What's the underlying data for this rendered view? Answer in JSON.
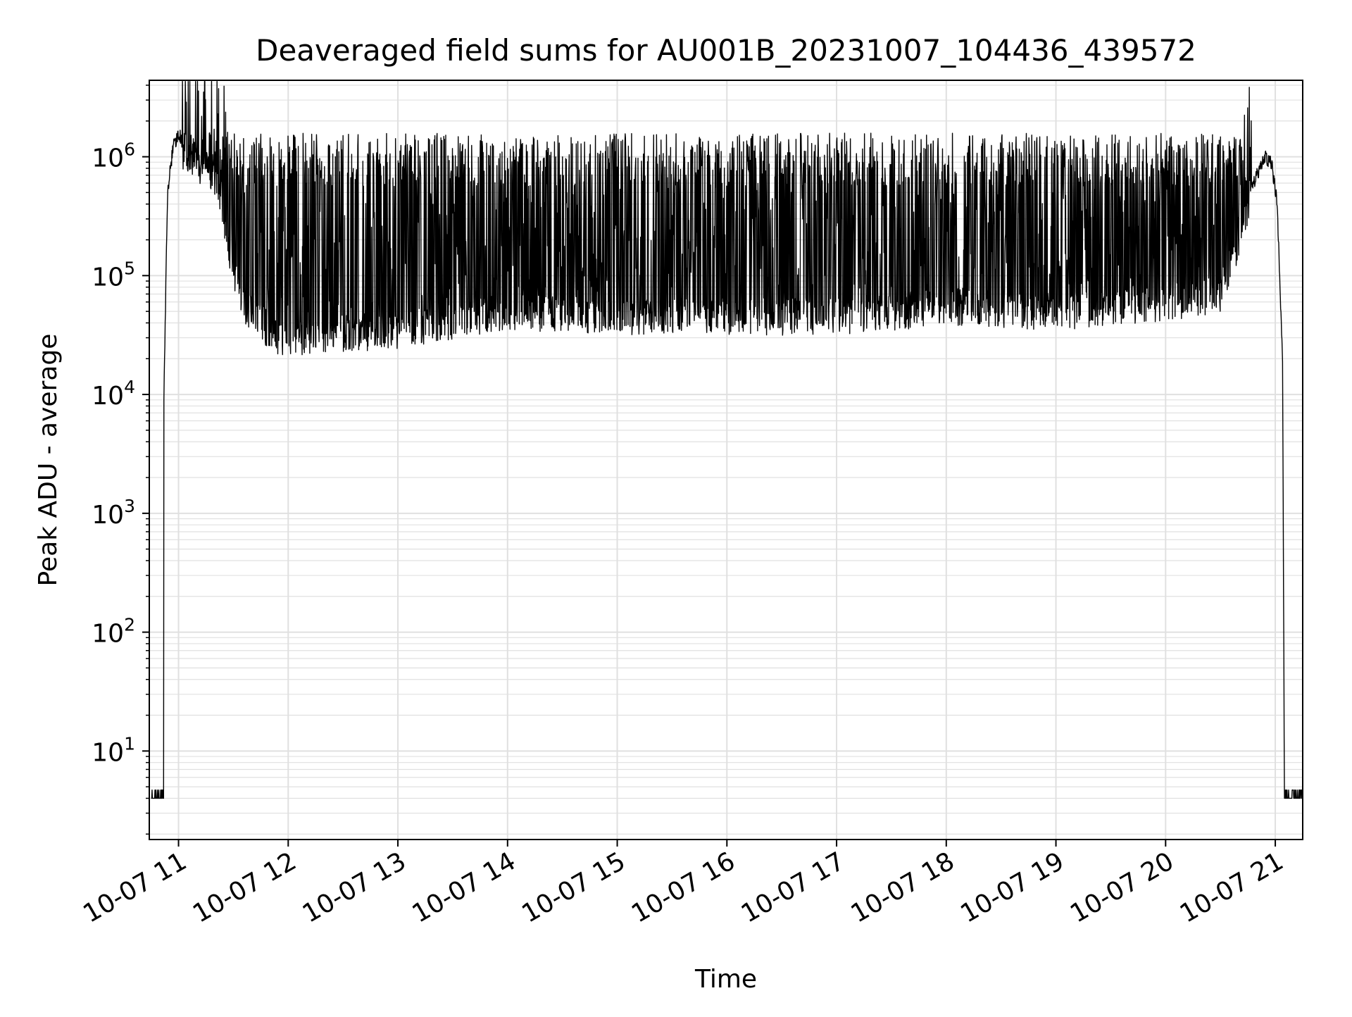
{
  "chart_data": {
    "type": "line",
    "title": "Deaveraged field sums for AU001B_20231007_104436_439572",
    "xlabel": "Time",
    "ylabel": "Peak ADU - average",
    "x_axis_type": "datetime",
    "x_range": [
      "2023-10-07 10:44",
      "2023-10-07 21:15"
    ],
    "y_scale": "log",
    "ylim": [
      1.8,
      4400000
    ],
    "x_ticks": [
      {
        "t": "2023-10-07 11:00",
        "label": "10-07 11"
      },
      {
        "t": "2023-10-07 12:00",
        "label": "10-07 12"
      },
      {
        "t": "2023-10-07 13:00",
        "label": "10-07 13"
      },
      {
        "t": "2023-10-07 14:00",
        "label": "10-07 14"
      },
      {
        "t": "2023-10-07 15:00",
        "label": "10-07 15"
      },
      {
        "t": "2023-10-07 16:00",
        "label": "10-07 16"
      },
      {
        "t": "2023-10-07 17:00",
        "label": "10-07 17"
      },
      {
        "t": "2023-10-07 18:00",
        "label": "10-07 18"
      },
      {
        "t": "2023-10-07 19:00",
        "label": "10-07 19"
      },
      {
        "t": "2023-10-07 20:00",
        "label": "10-07 20"
      },
      {
        "t": "2023-10-07 21:00",
        "label": "10-07 21"
      }
    ],
    "y_ticks": [
      {
        "value": 10,
        "base": "10",
        "exp": "1"
      },
      {
        "value": 100,
        "base": "10",
        "exp": "2"
      },
      {
        "value": 1000,
        "base": "10",
        "exp": "3"
      },
      {
        "value": 10000,
        "base": "10",
        "exp": "4"
      },
      {
        "value": 100000,
        "base": "10",
        "exp": "5"
      },
      {
        "value": 1000000,
        "base": "10",
        "exp": "6"
      }
    ],
    "grid": true,
    "legend": "none",
    "line_color": "#000000",
    "grid_color": "#e0e0e0",
    "series": [
      {
        "x": [
          "2023-10-07 10:45",
          "2023-10-07 10:51",
          "2023-10-07 10:52",
          "2023-10-07 10:54",
          "2023-10-07 10:57",
          "2023-10-07 11:00",
          "2023-10-07 11:03",
          "2023-10-07 11:08",
          "2023-10-07 11:15",
          "2023-10-07 11:22",
          "2023-10-07 11:30",
          "2023-10-07 11:38",
          "2023-10-07 11:45",
          "2023-10-07 11:52",
          "2023-10-07 12:00",
          "2023-10-07 13:00",
          "2023-10-07 14:00",
          "2023-10-07 15:00",
          "2023-10-07 16:00",
          "2023-10-07 17:00",
          "2023-10-07 18:00",
          "2023-10-07 19:00",
          "2023-10-07 20:00",
          "2023-10-07 20:30",
          "2023-10-07 20:40",
          "2023-10-07 20:48",
          "2023-10-07 20:54",
          "2023-10-07 20:58",
          "2023-10-07 21:01",
          "2023-10-07 21:04",
          "2023-10-07 21:05",
          "2023-10-07 21:15"
        ],
        "y": [
          4,
          4,
          10000,
          500000,
          1200000,
          1600000,
          1200000,
          1000000,
          900000,
          600000,
          100000,
          50000,
          40000,
          32000,
          30000,
          35000,
          50000,
          45000,
          45000,
          45000,
          55000,
          50000,
          60000,
          70000,
          200000,
          600000,
          1000000,
          900000,
          400000,
          20000,
          4,
          4
        ]
      }
    ]
  }
}
